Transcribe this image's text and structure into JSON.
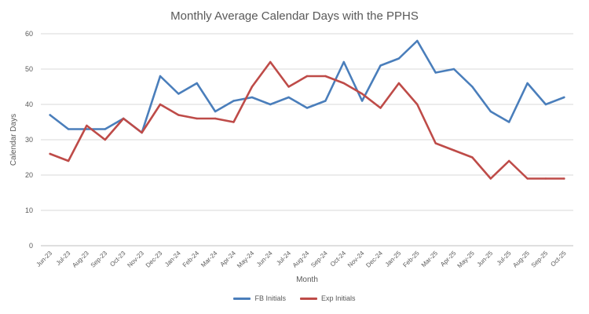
{
  "chart_data": {
    "type": "line",
    "title": "Monthly Average Calendar Days with the PPHS",
    "xlabel": "Month",
    "ylabel": "Calendar Days",
    "ylim": [
      0,
      60
    ],
    "yticks": [
      0,
      10,
      20,
      30,
      40,
      50,
      60
    ],
    "grid": true,
    "legend_position": "bottom",
    "categories": [
      "Jun-23",
      "Jul-23",
      "Aug-23",
      "Sep-23",
      "Oct-23",
      "Nov-23",
      "Dec-23",
      "Jan-24",
      "Feb-24",
      "Mar-24",
      "Apr-24",
      "May-24",
      "Jun-24",
      "Jul-24",
      "Aug-24",
      "Sep-24",
      "Oct-24",
      "Nov-24",
      "Dec-24",
      "Jan-25",
      "Feb-25",
      "Mar-25",
      "Apr-25",
      "May-25",
      "Jun-25",
      "Jul-25",
      "Aug-25",
      "Sep-25",
      "Oct-25"
    ],
    "series": [
      {
        "name": "FB Initials",
        "color": "#4a7ebb",
        "values": [
          37,
          33,
          33,
          33,
          36,
          32,
          48,
          43,
          46,
          38,
          41,
          42,
          40,
          42,
          39,
          41,
          52,
          41,
          51,
          53,
          58,
          49,
          50,
          45,
          38,
          35,
          46,
          40,
          42
        ]
      },
      {
        "name": "Exp Initials",
        "color": "#be4b48",
        "values": [
          26,
          24,
          34,
          30,
          36,
          32,
          40,
          37,
          36,
          36,
          35,
          45,
          52,
          45,
          48,
          48,
          46,
          43,
          39,
          46,
          40,
          29,
          27,
          25,
          19,
          24,
          19,
          19,
          19
        ]
      }
    ]
  }
}
